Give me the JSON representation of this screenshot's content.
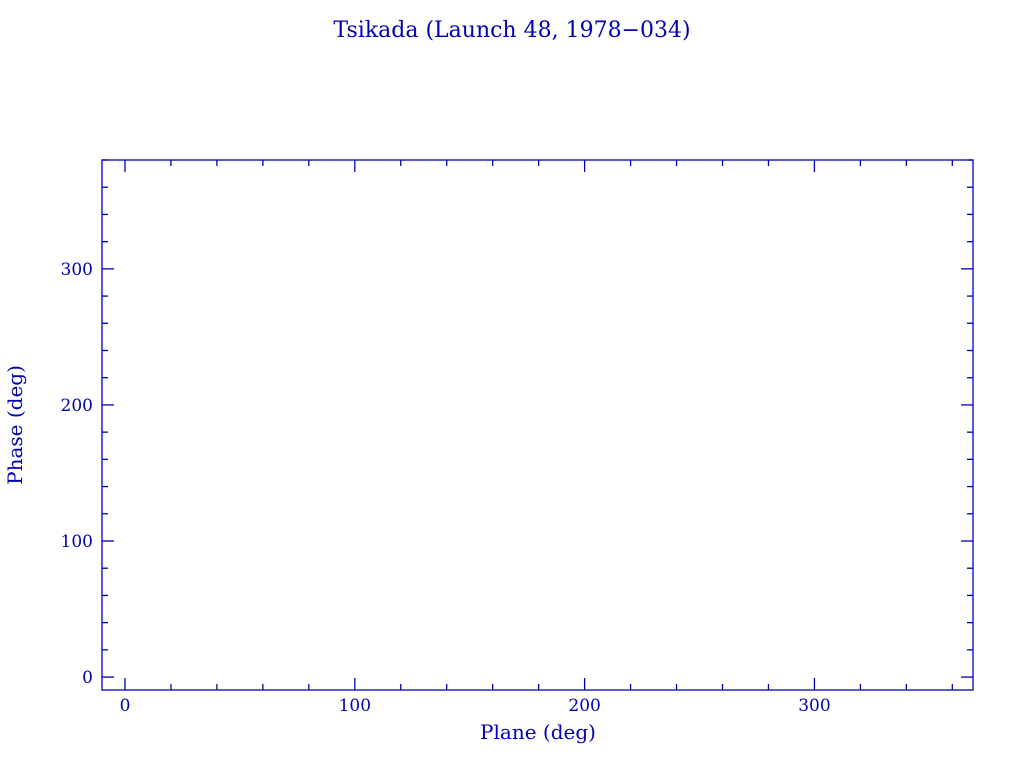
{
  "chart_data": {
    "type": "scatter",
    "title": "Tsikada (Launch 48, 1978−034)",
    "xlabel": "Plane (deg)",
    "ylabel": "Phase (deg)",
    "xlim": [
      -10,
      369
    ],
    "ylim": [
      -9.5,
      380
    ],
    "xticks": [
      0,
      100,
      200,
      300
    ],
    "yticks": [
      0,
      100,
      200,
      300
    ],
    "xtick_labels": [
      "0",
      "100",
      "200",
      "300"
    ],
    "ytick_labels": [
      "0",
      "100",
      "200",
      "300"
    ],
    "minor_step": 20,
    "grid": false,
    "series": [
      {
        "x": [],
        "y": []
      }
    ],
    "color": "#0000b0"
  }
}
